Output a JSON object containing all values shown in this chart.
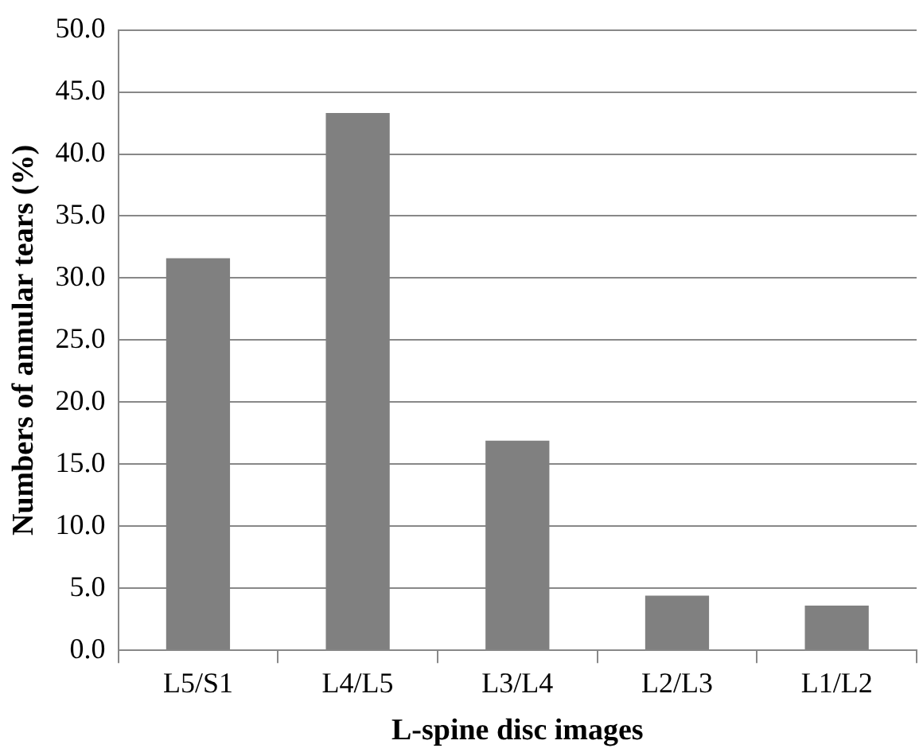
{
  "chart_data": {
    "type": "bar",
    "xlabel": "L-spine disc images",
    "ylabel": "Numbers of annular tears (%)",
    "categories": [
      "L5/S1",
      "L4/L5",
      "L3/L4",
      "L2/L3",
      "L1/L2"
    ],
    "values": [
      31.6,
      43.3,
      16.9,
      4.4,
      3.6
    ],
    "color": "#808080",
    "ylim": [
      0,
      50
    ],
    "yticks": [
      {
        "value": 0,
        "label": "0.0"
      },
      {
        "value": 5,
        "label": "5.0"
      },
      {
        "value": 10,
        "label": "10.0"
      },
      {
        "value": 15,
        "label": "15.0"
      },
      {
        "value": 20,
        "label": "20.0"
      },
      {
        "value": 25,
        "label": "25.0"
      },
      {
        "value": 30,
        "label": "30.0"
      },
      {
        "value": 35,
        "label": "35.0"
      },
      {
        "value": 40,
        "label": "40.0"
      },
      {
        "value": 45,
        "label": "45.0"
      },
      {
        "value": 50,
        "label": "50.0"
      }
    ],
    "grid": "y",
    "legend": false
  }
}
